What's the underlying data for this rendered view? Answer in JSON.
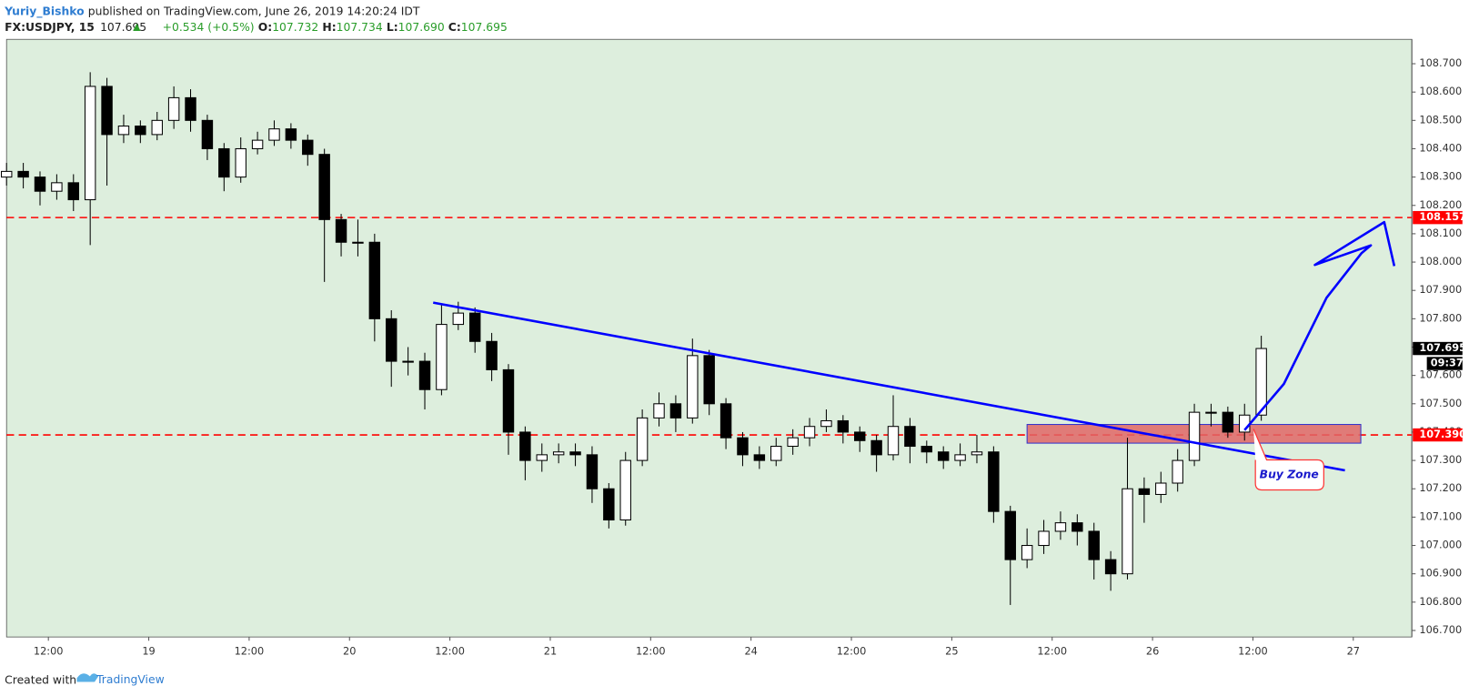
{
  "header": {
    "author": "Yuriy_Bishko",
    "published": "published on TradingView.com, June 26, 2019 14:20:24 IDT",
    "symbol": "FX:USDJPY, 15",
    "price": "107.695",
    "change": "+0.534 (+0.5%)",
    "o_label": "O:",
    "o": "107.732",
    "h_label": "H:",
    "h": "107.734",
    "l_label": "L:",
    "l": "107.690",
    "c_label": "C:",
    "c": "107.695"
  },
  "footer": {
    "created": "Created with",
    "brand": "TradingView"
  },
  "chart_data": {
    "type": "candlestick",
    "background": "#ddeedd",
    "x": [
      7,
      9,
      11,
      13,
      15,
      17,
      19,
      21,
      23,
      25,
      27,
      29,
      31,
      33,
      35,
      37,
      39,
      41,
      43,
      45,
      47,
      49,
      51,
      53,
      55,
      57,
      59,
      61,
      63,
      65,
      67,
      69,
      71,
      73,
      75,
      77,
      79,
      81,
      83,
      85,
      87,
      89,
      91,
      93,
      95,
      97,
      99,
      101,
      103,
      105,
      107,
      109,
      111,
      113,
      115,
      117,
      119,
      121,
      123,
      125,
      127,
      129,
      131,
      133,
      135,
      137,
      139,
      141,
      143,
      145,
      147,
      149,
      151,
      153,
      155,
      157
    ],
    "open": [
      108.3,
      108.32,
      108.3,
      108.25,
      108.28,
      108.22,
      108.62,
      108.45,
      108.48,
      108.45,
      108.5,
      108.58,
      108.5,
      108.4,
      108.3,
      108.4,
      108.43,
      108.47,
      108.43,
      108.38,
      108.15,
      108.07,
      108.07,
      107.8,
      107.65,
      107.65,
      107.55,
      107.78,
      107.82,
      107.72,
      107.62,
      107.4,
      107.3,
      107.32,
      107.33,
      107.32,
      107.2,
      107.09,
      107.3,
      107.45,
      107.5,
      107.45,
      107.67,
      107.5,
      107.38,
      107.32,
      107.3,
      107.35,
      107.38,
      107.42,
      107.44,
      107.4,
      107.37,
      107.32,
      107.42,
      107.35,
      107.33,
      107.3,
      107.32,
      107.33,
      107.12,
      106.95,
      107.0,
      107.05,
      107.08,
      107.05,
      106.95,
      106.9,
      107.2,
      107.18,
      107.22,
      107.3,
      107.47,
      107.47,
      107.4,
      107.46
    ],
    "high": [
      108.35,
      108.35,
      108.32,
      108.31,
      108.31,
      108.67,
      108.65,
      108.52,
      108.5,
      108.53,
      108.62,
      108.61,
      108.52,
      108.42,
      108.44,
      108.46,
      108.5,
      108.49,
      108.45,
      108.4,
      108.17,
      108.15,
      108.1,
      107.83,
      107.7,
      107.68,
      107.85,
      107.86,
      107.84,
      107.75,
      107.64,
      107.42,
      107.36,
      107.36,
      107.36,
      107.35,
      107.22,
      107.33,
      107.48,
      107.54,
      107.53,
      107.73,
      107.69,
      107.52,
      107.4,
      107.35,
      107.38,
      107.41,
      107.45,
      107.48,
      107.46,
      107.42,
      107.39,
      107.53,
      107.45,
      107.37,
      107.35,
      107.36,
      107.39,
      107.35,
      107.14,
      107.06,
      107.09,
      107.12,
      107.11,
      107.08,
      106.98,
      107.38,
      107.24,
      107.26,
      107.34,
      107.5,
      107.5,
      107.49,
      107.5,
      107.74
    ],
    "low": [
      108.27,
      108.26,
      108.2,
      108.22,
      108.18,
      108.06,
      108.27,
      108.42,
      108.42,
      108.43,
      108.47,
      108.46,
      108.36,
      108.25,
      108.28,
      108.38,
      108.41,
      108.4,
      108.34,
      107.93,
      108.02,
      108.02,
      107.72,
      107.56,
      107.6,
      107.48,
      107.53,
      107.76,
      107.68,
      107.58,
      107.32,
      107.23,
      107.26,
      107.29,
      107.28,
      107.15,
      107.06,
      107.07,
      107.28,
      107.42,
      107.4,
      107.43,
      107.46,
      107.34,
      107.28,
      107.27,
      107.28,
      107.32,
      107.35,
      107.4,
      107.36,
      107.33,
      107.26,
      107.3,
      107.29,
      107.29,
      107.27,
      107.28,
      107.29,
      107.08,
      106.79,
      106.92,
      106.97,
      107.02,
      107.0,
      106.88,
      106.84,
      106.88,
      107.08,
      107.15,
      107.19,
      107.28,
      107.42,
      107.38,
      107.37,
      107.44
    ],
    "close": [
      108.32,
      108.3,
      108.25,
      108.28,
      108.22,
      108.62,
      108.45,
      108.48,
      108.45,
      108.5,
      108.58,
      108.5,
      108.4,
      108.3,
      108.4,
      108.43,
      108.47,
      108.43,
      108.38,
      108.15,
      108.07,
      108.07,
      107.8,
      107.65,
      107.65,
      107.55,
      107.78,
      107.82,
      107.72,
      107.62,
      107.4,
      107.3,
      107.32,
      107.33,
      107.32,
      107.2,
      107.09,
      107.3,
      107.45,
      107.5,
      107.45,
      107.67,
      107.5,
      107.38,
      107.32,
      107.3,
      107.35,
      107.38,
      107.42,
      107.44,
      107.4,
      107.37,
      107.32,
      107.42,
      107.35,
      107.33,
      107.3,
      107.32,
      107.33,
      107.12,
      106.95,
      107.0,
      107.05,
      107.08,
      107.05,
      106.95,
      106.9,
      107.2,
      107.18,
      107.22,
      107.3,
      107.47,
      107.47,
      107.4,
      107.46,
      107.695
    ],
    "xlim": [
      7,
      175
    ],
    "ylim": [
      106.677,
      108.786
    ],
    "xticks": [
      {
        "value": 12,
        "label": "12:00"
      },
      {
        "value": 24,
        "label": "19"
      },
      {
        "value": 36,
        "label": "12:00"
      },
      {
        "value": 48,
        "label": "20"
      },
      {
        "value": 60,
        "label": "12:00"
      },
      {
        "value": 72,
        "label": "21"
      },
      {
        "value": 84,
        "label": "12:00"
      },
      {
        "value": 96,
        "label": "24"
      },
      {
        "value": 108,
        "label": "12:00"
      },
      {
        "value": 120,
        "label": "25"
      },
      {
        "value": 132,
        "label": "12:00"
      },
      {
        "value": 144,
        "label": "26"
      },
      {
        "value": 156,
        "label": "12:00"
      },
      {
        "value": 168,
        "label": "27"
      }
    ],
    "yticks": [
      {
        "value": 106.7,
        "label": "106.700"
      },
      {
        "value": 106.8,
        "label": "106.800"
      },
      {
        "value": 106.9,
        "label": "106.900"
      },
      {
        "value": 107.0,
        "label": "107.000"
      },
      {
        "value": 107.1,
        "label": "107.100"
      },
      {
        "value": 107.2,
        "label": "107.200"
      },
      {
        "value": 107.3,
        "label": "107.300"
      },
      {
        "value": 107.4,
        "label": "107.400"
      },
      {
        "value": 107.5,
        "label": "107.500"
      },
      {
        "value": 107.6,
        "label": "107.600"
      },
      {
        "value": 107.7,
        "label": "107.700"
      },
      {
        "value": 107.8,
        "label": "107.800"
      },
      {
        "value": 107.9,
        "label": "107.900"
      },
      {
        "value": 108.0,
        "label": "108.000"
      },
      {
        "value": 108.1,
        "label": "108.100"
      },
      {
        "value": 108.2,
        "label": "108.200"
      },
      {
        "value": 108.3,
        "label": "108.300"
      },
      {
        "value": 108.4,
        "label": "108.400"
      },
      {
        "value": 108.5,
        "label": "108.500"
      },
      {
        "value": 108.6,
        "label": "108.600"
      },
      {
        "value": 108.7,
        "label": "108.700"
      }
    ],
    "hlines": [
      {
        "value": 108.157,
        "label": "108.157",
        "color": "#ff0000"
      },
      {
        "value": 107.39,
        "label": "107.390",
        "color": "#ff0000"
      }
    ],
    "last_price": {
      "value": 107.695,
      "label": "107.695",
      "countdown": "09:37"
    },
    "trendline": {
      "x": [
        58.0,
        167.0
      ],
      "y": [
        107.857,
        107.265
      ],
      "color": "#0000ff"
    },
    "zone": {
      "x": [
        129.0,
        168.9
      ],
      "y": [
        107.427,
        107.361
      ],
      "color": "#e06666",
      "label": "Buy Zone"
    },
    "forecast": {
      "x": [
        155.0,
        159.7,
        164.8,
        169.0,
        170.1,
        163.4,
        171.7,
        172.9
      ],
      "y": [
        107.407,
        107.57,
        107.874,
        108.032,
        108.059,
        107.99,
        108.141,
        107.986
      ],
      "color": "#0000ff"
    }
  }
}
